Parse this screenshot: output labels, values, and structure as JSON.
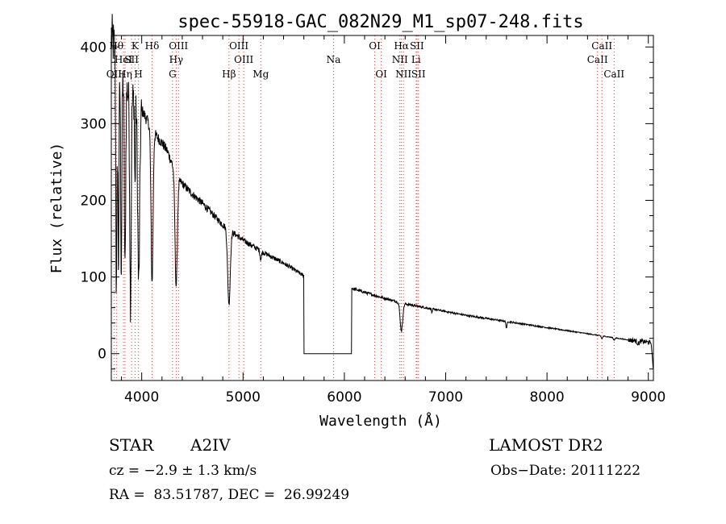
{
  "chart_data": {
    "type": "line",
    "title": "spec-55918-GAC_082N29_M1_sp07-248.fits",
    "xlabel": "Wavelength (Å)",
    "ylabel": "Flux (relative)",
    "xlim": [
      3700,
      9050
    ],
    "ylim": [
      -35,
      415
    ],
    "x_ticks": [
      4000,
      5000,
      6000,
      7000,
      8000,
      9000
    ],
    "y_ticks": [
      0,
      100,
      200,
      300,
      400
    ],
    "grid": false,
    "continuum": [
      [
        3700,
        415
      ],
      [
        3760,
        385
      ],
      [
        3800,
        365
      ],
      [
        3850,
        345
      ],
      [
        3900,
        335
      ],
      [
        3950,
        330
      ],
      [
        4000,
        318
      ],
      [
        4050,
        305
      ],
      [
        4100,
        292
      ],
      [
        4150,
        283
      ],
      [
        4200,
        275
      ],
      [
        4250,
        265
      ],
      [
        4300,
        248
      ],
      [
        4350,
        228
      ],
      [
        4400,
        222
      ],
      [
        4450,
        215
      ],
      [
        4500,
        208
      ],
      [
        4600,
        196
      ],
      [
        4700,
        182
      ],
      [
        4800,
        168
      ],
      [
        4900,
        158
      ],
      [
        5000,
        148
      ],
      [
        5100,
        140
      ],
      [
        5200,
        132
      ],
      [
        5300,
        125
      ],
      [
        5400,
        118
      ],
      [
        5500,
        110
      ],
      [
        5580,
        103
      ],
      [
        6080,
        85
      ],
      [
        6200,
        80
      ],
      [
        6400,
        72
      ],
      [
        6600,
        65
      ],
      [
        6800,
        60
      ],
      [
        7000,
        55
      ],
      [
        7200,
        50
      ],
      [
        7500,
        44
      ],
      [
        7800,
        38
      ],
      [
        8000,
        34
      ],
      [
        8300,
        28
      ],
      [
        8600,
        22
      ],
      [
        8800,
        18
      ],
      [
        9000,
        15
      ],
      [
        9050,
        14
      ]
    ],
    "absorption": [
      [
        3750,
        0.8,
        8
      ],
      [
        3770,
        0.7,
        8
      ],
      [
        3798,
        0.7,
        8
      ],
      [
        3835,
        0.7,
        9
      ],
      [
        3889,
        0.8,
        10
      ],
      [
        3934,
        0.35,
        6
      ],
      [
        3970,
        0.72,
        14
      ],
      [
        4102,
        0.68,
        14
      ],
      [
        4340,
        0.62,
        16
      ],
      [
        4861,
        0.6,
        18
      ],
      [
        5175,
        0.08,
        10
      ],
      [
        6563,
        0.55,
        18
      ],
      [
        6865,
        0.1,
        6
      ],
      [
        7600,
        0.2,
        8
      ],
      [
        8542,
        0.15,
        10
      ],
      [
        8662,
        0.15,
        10
      ],
      [
        8900,
        0.2,
        15
      ]
    ],
    "gap": {
      "from": 5600,
      "to": 6070,
      "value": 0
    },
    "tail": [
      [
        9030,
        10
      ],
      [
        9040,
        -5
      ],
      [
        9048,
        -20
      ]
    ],
    "spectral_lines": [
      {
        "label": "OII",
        "wavelength": 3727,
        "row": 3
      },
      {
        "label": "Hθ",
        "wavelength": 3750,
        "row": 1
      },
      {
        "label": "HeI",
        "wavelength": 3820,
        "row": 2
      },
      {
        "label": "Hη",
        "wavelength": 3835,
        "row": 3
      },
      {
        "label": "K",
        "wavelength": 3934,
        "row": 1
      },
      {
        "label": "SII",
        "wavelength": 3900,
        "row": 2
      },
      {
        "label": "H",
        "wavelength": 3968,
        "row": 3
      },
      {
        "label": "Hδ",
        "wavelength": 4102,
        "row": 1
      },
      {
        "label": "OIII",
        "wavelength": 4363,
        "row": 1
      },
      {
        "label": "Hγ",
        "wavelength": 4340,
        "row": 2
      },
      {
        "label": "G",
        "wavelength": 4304,
        "row": 3
      },
      {
        "label": "OIII",
        "wavelength": 4959,
        "row": 1
      },
      {
        "label": "OIII",
        "wavelength": 5007,
        "row": 2
      },
      {
        "label": "Hβ",
        "wavelength": 4861,
        "row": 3
      },
      {
        "label": "Mg",
        "wavelength": 5175,
        "row": 3
      },
      {
        "label": "Na",
        "wavelength": 5893,
        "row": 2
      },
      {
        "label": "OI",
        "wavelength": 6300,
        "row": 1
      },
      {
        "label": "OI",
        "wavelength": 6364,
        "row": 3
      },
      {
        "label": "Hα",
        "wavelength": 6563,
        "row": 1
      },
      {
        "label": "SII",
        "wavelength": 6716,
        "row": 1
      },
      {
        "label": "NII",
        "wavelength": 6548,
        "row": 2
      },
      {
        "label": "Li",
        "wavelength": 6708,
        "row": 2
      },
      {
        "label": "NII",
        "wavelength": 6583,
        "row": 3
      },
      {
        "label": "SII",
        "wavelength": 6731,
        "row": 3
      },
      {
        "label": "CaII",
        "wavelength": 8542,
        "row": 1
      },
      {
        "label": "CaII",
        "wavelength": 8498,
        "row": 2
      },
      {
        "label": "CaII",
        "wavelength": 8662,
        "row": 3
      }
    ]
  },
  "info": {
    "class": "STAR",
    "subclass": "A2IV",
    "survey": "LAMOST DR2",
    "cz": "cz = −2.9 ± 1.3 km/s",
    "obs_date": "Obs−Date: 20111222",
    "radec": "RA =  83.51787, DEC =  26.99249"
  }
}
